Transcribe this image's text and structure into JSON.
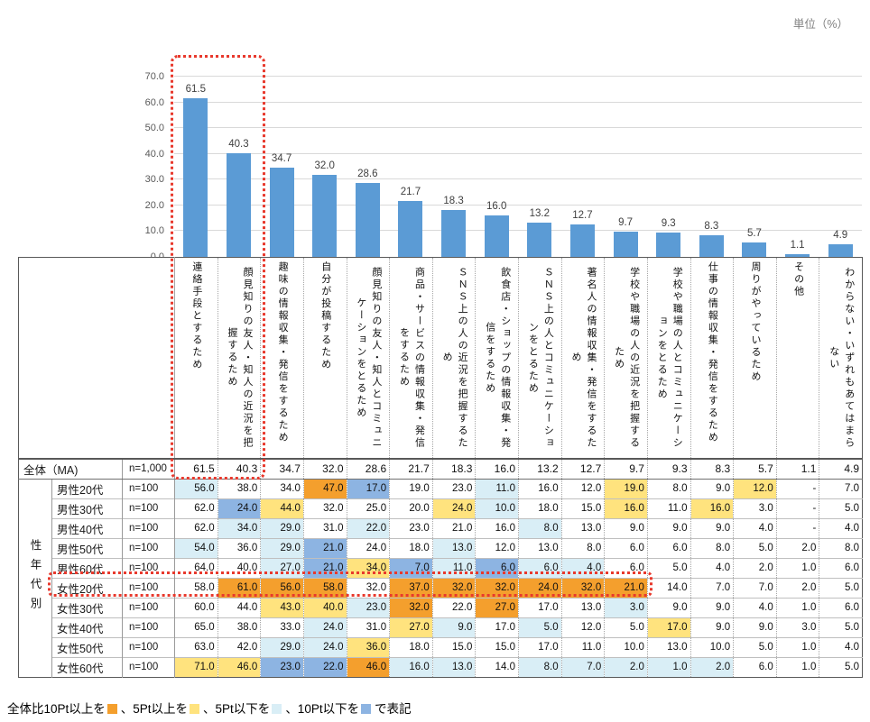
{
  "unit_label": "単位（%）",
  "colors": {
    "bar": "#5B9BD5",
    "orange": "#F49F2D",
    "yellow": "#FFE37E",
    "cyan": "#D9EEF6",
    "blue": "#8DB4E2",
    "red_box": "#E8392D"
  },
  "chart_data": {
    "type": "bar",
    "title": "",
    "unit": "%",
    "ylim": [
      0,
      70
    ],
    "ytick_interval": 10,
    "grid": true,
    "categories": [
      "連絡手段とするため",
      "顔見知りの友人・知人の近況を把握するため",
      "趣味の情報収集・発信をするため",
      "自分が投稿するため",
      "顔見知りの友人・知人とコミュニケーションをとるため",
      "商品・サービスの情報収集・発信をするため",
      "ＳＮＳ上の人の近況を把握するため",
      "飲食店・ショップの情報収集・発信をするため",
      "ＳＮＳ上の人とコミュニケーションをとるため",
      "著名人の情報収集・発信をするため",
      "学校や職場の人の近況を把握するため",
      "学校や職場の人とコミュニケーションをとるため",
      "仕事の情報収集・発信をするため",
      "周りがやっているため",
      "その他",
      "わからない・いずれもあてはまらない"
    ],
    "values": [
      61.5,
      40.3,
      34.7,
      32.0,
      28.6,
      21.7,
      18.3,
      16.0,
      13.2,
      12.7,
      9.7,
      9.3,
      8.3,
      5.7,
      1.1,
      4.9
    ]
  },
  "table": {
    "group_label": "性年代別",
    "overall_row": {
      "label": "全体（MA)",
      "n": "n=1,000",
      "values": [
        "61.5",
        "40.3",
        "34.7",
        "32.0",
        "28.6",
        "21.7",
        "18.3",
        "16.0",
        "13.2",
        "12.7",
        "9.7",
        "9.3",
        "8.3",
        "5.7",
        "1.1",
        "4.9"
      ]
    },
    "rows": [
      {
        "label": "男性20代",
        "n": "n=100",
        "values": [
          "56.0",
          "38.0",
          "34.0",
          "47.0",
          "17.0",
          "19.0",
          "23.0",
          "11.0",
          "16.0",
          "12.0",
          "19.0",
          "8.0",
          "9.0",
          "12.0",
          "-",
          "7.0"
        ],
        "hl": [
          "c",
          "",
          "",
          "o",
          "b",
          "",
          "",
          "c",
          "",
          "",
          "y",
          "",
          "",
          "y",
          "",
          ""
        ]
      },
      {
        "label": "男性30代",
        "n": "n=100",
        "values": [
          "62.0",
          "24.0",
          "44.0",
          "32.0",
          "25.0",
          "20.0",
          "24.0",
          "10.0",
          "18.0",
          "15.0",
          "16.0",
          "11.0",
          "16.0",
          "3.0",
          "-",
          "5.0"
        ],
        "hl": [
          "",
          "b",
          "y",
          "",
          "",
          "",
          "y",
          "c",
          "",
          "",
          "y",
          "",
          "y",
          "",
          "",
          ""
        ]
      },
      {
        "label": "男性40代",
        "n": "n=100",
        "values": [
          "62.0",
          "34.0",
          "29.0",
          "31.0",
          "22.0",
          "23.0",
          "21.0",
          "16.0",
          "8.0",
          "13.0",
          "9.0",
          "9.0",
          "9.0",
          "4.0",
          "-",
          "4.0"
        ],
        "hl": [
          "",
          "c",
          "c",
          "",
          "c",
          "",
          "",
          "",
          "c",
          "",
          "",
          "",
          "",
          "",
          "",
          ""
        ]
      },
      {
        "label": "男性50代",
        "n": "n=100",
        "values": [
          "54.0",
          "36.0",
          "29.0",
          "21.0",
          "24.0",
          "18.0",
          "13.0",
          "12.0",
          "13.0",
          "8.0",
          "6.0",
          "6.0",
          "8.0",
          "5.0",
          "2.0",
          "8.0"
        ],
        "hl": [
          "c",
          "",
          "c",
          "b",
          "",
          "",
          "c",
          "",
          "",
          "",
          "",
          "",
          "",
          "",
          "",
          ""
        ]
      },
      {
        "label": "男性60代",
        "n": "n=100",
        "values": [
          "64.0",
          "40.0",
          "27.0",
          "21.0",
          "34.0",
          "7.0",
          "11.0",
          "6.0",
          "6.0",
          "4.0",
          "6.0",
          "5.0",
          "4.0",
          "2.0",
          "1.0",
          "6.0"
        ],
        "hl": [
          "",
          "",
          "c",
          "b",
          "y",
          "b",
          "c",
          "b",
          "c",
          "c",
          "",
          "",
          "",
          "",
          "",
          ""
        ]
      },
      {
        "label": "女性20代",
        "n": "n=100",
        "values": [
          "58.0",
          "61.0",
          "56.0",
          "58.0",
          "32.0",
          "37.0",
          "32.0",
          "32.0",
          "24.0",
          "32.0",
          "21.0",
          "14.0",
          "7.0",
          "7.0",
          "2.0",
          "5.0"
        ],
        "hl": [
          "",
          "o",
          "o",
          "o",
          "",
          "o",
          "o",
          "o",
          "o",
          "o",
          "o",
          "",
          "",
          "",
          "",
          ""
        ]
      },
      {
        "label": "女性30代",
        "n": "n=100",
        "values": [
          "60.0",
          "44.0",
          "43.0",
          "40.0",
          "23.0",
          "32.0",
          "22.0",
          "27.0",
          "17.0",
          "13.0",
          "3.0",
          "9.0",
          "9.0",
          "4.0",
          "1.0",
          "6.0"
        ],
        "hl": [
          "",
          "",
          "y",
          "y",
          "c",
          "o",
          "",
          "o",
          "",
          "",
          "c",
          "",
          "",
          "",
          "",
          ""
        ]
      },
      {
        "label": "女性40代",
        "n": "n=100",
        "values": [
          "65.0",
          "38.0",
          "33.0",
          "24.0",
          "31.0",
          "27.0",
          "9.0",
          "17.0",
          "5.0",
          "12.0",
          "5.0",
          "17.0",
          "9.0",
          "9.0",
          "3.0",
          "5.0"
        ],
        "hl": [
          "",
          "",
          "",
          "c",
          "",
          "y",
          "c",
          "",
          "c",
          "",
          "",
          "y",
          "",
          "",
          "",
          ""
        ]
      },
      {
        "label": "女性50代",
        "n": "n=100",
        "values": [
          "63.0",
          "42.0",
          "29.0",
          "24.0",
          "36.0",
          "18.0",
          "15.0",
          "15.0",
          "17.0",
          "11.0",
          "10.0",
          "13.0",
          "10.0",
          "5.0",
          "1.0",
          "4.0"
        ],
        "hl": [
          "",
          "",
          "c",
          "c",
          "y",
          "",
          "",
          "",
          "",
          "",
          "",
          "",
          "",
          "",
          "",
          ""
        ]
      },
      {
        "label": "女性60代",
        "n": "n=100",
        "values": [
          "71.0",
          "46.0",
          "23.0",
          "22.0",
          "46.0",
          "16.0",
          "13.0",
          "14.0",
          "8.0",
          "7.0",
          "2.0",
          "1.0",
          "2.0",
          "6.0",
          "1.0",
          "5.0"
        ],
        "hl": [
          "y",
          "y",
          "b",
          "b",
          "o",
          "c",
          "c",
          "",
          "c",
          "c",
          "c",
          "c",
          "c",
          "",
          "",
          ""
        ]
      }
    ]
  },
  "highlights": {
    "columns": [
      "連絡手段とするため",
      "顔見知りの友人・知人の近況を把握するため"
    ],
    "row": "女性20代"
  },
  "legend": {
    "segments": [
      {
        "text": "全体比10Pt以上を"
      },
      {
        "swatch": "orange"
      },
      {
        "text": "、5Pt以上を"
      },
      {
        "swatch": "yellow"
      },
      {
        "text": "、5Pt以下を"
      },
      {
        "swatch": "cyan"
      },
      {
        "text": "、10Pt以下を"
      },
      {
        "swatch": "blue"
      },
      {
        "text": "で表記"
      }
    ]
  }
}
